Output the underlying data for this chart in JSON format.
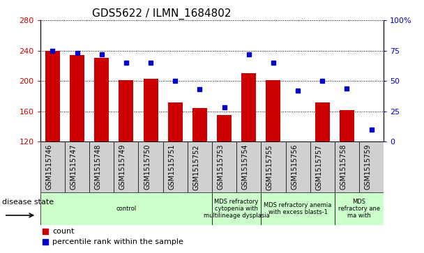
{
  "title": "GDS5622 / ILMN_1684802",
  "samples": [
    "GSM1515746",
    "GSM1515747",
    "GSM1515748",
    "GSM1515749",
    "GSM1515750",
    "GSM1515751",
    "GSM1515752",
    "GSM1515753",
    "GSM1515754",
    "GSM1515755",
    "GSM1515756",
    "GSM1515757",
    "GSM1515758",
    "GSM1515759"
  ],
  "counts": [
    240,
    234,
    230,
    201,
    203,
    172,
    164,
    155,
    210,
    201,
    120,
    172,
    162,
    118
  ],
  "percentiles": [
    75,
    73,
    72,
    65,
    65,
    50,
    43,
    28,
    72,
    65,
    42,
    50,
    44,
    10
  ],
  "y_min": 120,
  "y_max": 280,
  "y_ticks": [
    120,
    160,
    200,
    240,
    280
  ],
  "y2_ticks": [
    0,
    25,
    50,
    75,
    100
  ],
  "bar_color": "#cc0000",
  "dot_color": "#0000cc",
  "bg_color": "#ffffff",
  "tick_box_color": "#d0d0d0",
  "disease_groups": [
    {
      "label": "control",
      "start": 0,
      "end": 7,
      "color": "#ccffcc"
    },
    {
      "label": "MDS refractory\ncytopenia with\nmultilineage dysplasia",
      "start": 7,
      "end": 9,
      "color": "#ccffcc"
    },
    {
      "label": "MDS refractory anemia\nwith excess blasts-1",
      "start": 9,
      "end": 12,
      "color": "#ccffcc"
    },
    {
      "label": "MDS\nrefractory ane\nma with",
      "start": 12,
      "end": 14,
      "color": "#ccffcc"
    }
  ],
  "legend_count_label": "count",
  "legend_pct_label": "percentile rank within the sample",
  "disease_state_label": "disease state"
}
